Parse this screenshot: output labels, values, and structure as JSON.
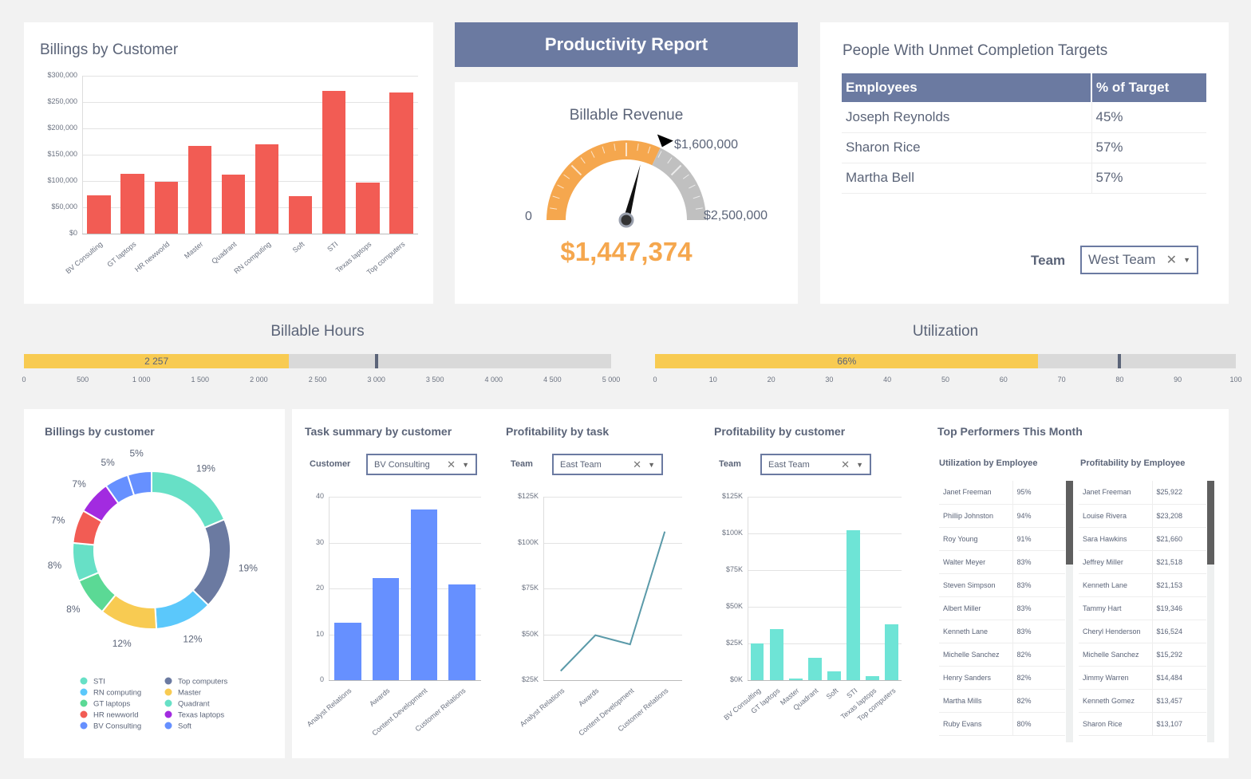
{
  "billings_card": {
    "title": "Billings by Customer"
  },
  "header": {
    "title": "Productivity Report"
  },
  "gauge": {
    "title": "Billable Revenue",
    "min_label": "0",
    "target_label": "$1,600,000",
    "max_label": "$2,500,000",
    "value_label": "$1,447,374",
    "min": 0,
    "max": 2500000,
    "target": 1600000,
    "value": 1447374,
    "fill_color": "#f5a74e",
    "rest_color": "#c0c0c0"
  },
  "unmet": {
    "title": "People With Unmet Completion Targets",
    "columns": [
      "Employees",
      "% of Target"
    ],
    "rows": [
      [
        "Joseph Reynolds",
        "45%"
      ],
      [
        "Sharon Rice",
        "57%"
      ],
      [
        "Martha Bell",
        "57%"
      ]
    ],
    "team_label": "Team",
    "team_value": "West Team"
  },
  "hours": {
    "title": "Billable Hours",
    "value": 2257,
    "value_label": "2 257",
    "target": 3000,
    "max": 5000,
    "ticks": [
      "0",
      "500",
      "1 000",
      "1 500",
      "2 000",
      "2 500",
      "3 000",
      "3 500",
      "4 000",
      "4 500",
      "5 000"
    ]
  },
  "util": {
    "title": "Utilization",
    "value": 66,
    "value_label": "66%",
    "target": 80,
    "max": 100,
    "ticks": [
      "0",
      "10",
      "20",
      "30",
      "40",
      "50",
      "60",
      "70",
      "80",
      "90",
      "100"
    ]
  },
  "task_card": {
    "title": "Task summary by customer",
    "filter_label": "Customer",
    "filter_value": "BV Consulting"
  },
  "ptask_card": {
    "title": "Profitability by task",
    "filter_label": "Team",
    "filter_value": "East Team"
  },
  "pcust_card": {
    "title": "Profitability by customer",
    "filter_label": "Team",
    "filter_value": "East Team"
  },
  "donut_card": {
    "title": "Billings by customer"
  },
  "top": {
    "title": "Top Performers This Month",
    "util_title": "Utilization by Employee",
    "profit_title": "Profitability by Employee",
    "util_rows": [
      [
        "Janet Freeman",
        "95%"
      ],
      [
        "Phillip Johnston",
        "94%"
      ],
      [
        "Roy Young",
        "91%"
      ],
      [
        "Walter Meyer",
        "83%"
      ],
      [
        "Steven Simpson",
        "83%"
      ],
      [
        "Albert Miller",
        "83%"
      ],
      [
        "Kenneth Lane",
        "83%"
      ],
      [
        "Michelle Sanchez",
        "82%"
      ],
      [
        "Henry Sanders",
        "82%"
      ],
      [
        "Martha Mills",
        "82%"
      ],
      [
        "Ruby Evans",
        "80%"
      ]
    ],
    "profit_rows": [
      [
        "Janet Freeman",
        "$25,922"
      ],
      [
        "Louise Rivera",
        "$23,208"
      ],
      [
        "Sara Hawkins",
        "$21,660"
      ],
      [
        "Jeffrey Miller",
        "$21,518"
      ],
      [
        "Kenneth Lane",
        "$21,153"
      ],
      [
        "Tammy Hart",
        "$19,346"
      ],
      [
        "Cheryl Henderson",
        "$16,524"
      ],
      [
        "Michelle Sanchez",
        "$15,292"
      ],
      [
        "Jimmy Warren",
        "$14,484"
      ],
      [
        "Kenneth Gomez",
        "$13,457"
      ],
      [
        "Sharon Rice",
        "$13,107"
      ]
    ]
  },
  "chart_data": [
    {
      "id": "billings",
      "type": "bar",
      "categories": [
        "BV Consulting",
        "GT laptops",
        "HR newworld",
        "Master",
        "Quadrant",
        "RN computing",
        "Soft",
        "STI",
        "Texas laptops",
        "Top computers"
      ],
      "values": [
        73000,
        114000,
        98000,
        167000,
        112000,
        170000,
        71000,
        271000,
        97000,
        268000
      ],
      "ylim": [
        0,
        300000
      ],
      "yticks": [
        "$0",
        "$50,000",
        "$100,000",
        "$150,000",
        "$200,000",
        "$250,000",
        "$300,000"
      ],
      "color": "#f25c54",
      "grid": true
    },
    {
      "id": "donut",
      "type": "pie",
      "categories": [
        "STI",
        "Top computers",
        "RN computing",
        "Master",
        "GT laptops",
        "Quadrant",
        "HR newworld",
        "Texas laptops",
        "BV Consulting",
        "Soft"
      ],
      "values": [
        19,
        19,
        12,
        12,
        8,
        8,
        7,
        7,
        5,
        5
      ],
      "labels": [
        "19%",
        "19%",
        "12%",
        "12%",
        "8%",
        "8%",
        "7%",
        "7%",
        "5%",
        "5%"
      ],
      "colors": [
        "#67e0c6",
        "#6b7aa1",
        "#5bc8fb",
        "#f8cb52",
        "#5bd995",
        "#67e0c6",
        "#f25c54",
        "#a22be0",
        "#6690ff",
        "#6690ff"
      ],
      "legend": "bottom"
    },
    {
      "id": "task",
      "type": "bar",
      "categories": [
        "Analyst Relations",
        "Awards",
        "Content Development",
        "Customer Relations"
      ],
      "values": [
        12.5,
        22.3,
        37.3,
        20.9
      ],
      "ylim": [
        0,
        40
      ],
      "yticks": [
        "0",
        "10",
        "20",
        "30",
        "40"
      ],
      "color": "#6690ff",
      "grid": true
    },
    {
      "id": "ptask",
      "type": "line",
      "categories": [
        "Analyst Relations",
        "Awards",
        "Content Development",
        "Customer Relations"
      ],
      "values": [
        30000,
        49500,
        44500,
        106000
      ],
      "ylim": [
        25000,
        125000
      ],
      "yticks": [
        "$25K",
        "$50K",
        "$75K",
        "$100K",
        "$125K"
      ],
      "color": "#5b9aa9",
      "grid": true
    },
    {
      "id": "pcust",
      "type": "bar",
      "categories": [
        "BV Consulting",
        "GT laptops",
        "Master",
        "Quadrant",
        "Soft",
        "STI",
        "Texas laptops",
        "Top computers"
      ],
      "values": [
        25000,
        35000,
        1000,
        15000,
        6000,
        102000,
        2500,
        38000
      ],
      "ylim": [
        0,
        125000
      ],
      "yticks": [
        "$0K",
        "$25K",
        "$50K",
        "$75K",
        "$100K",
        "$125K"
      ],
      "color": "#6ee4d6",
      "grid": true
    }
  ]
}
